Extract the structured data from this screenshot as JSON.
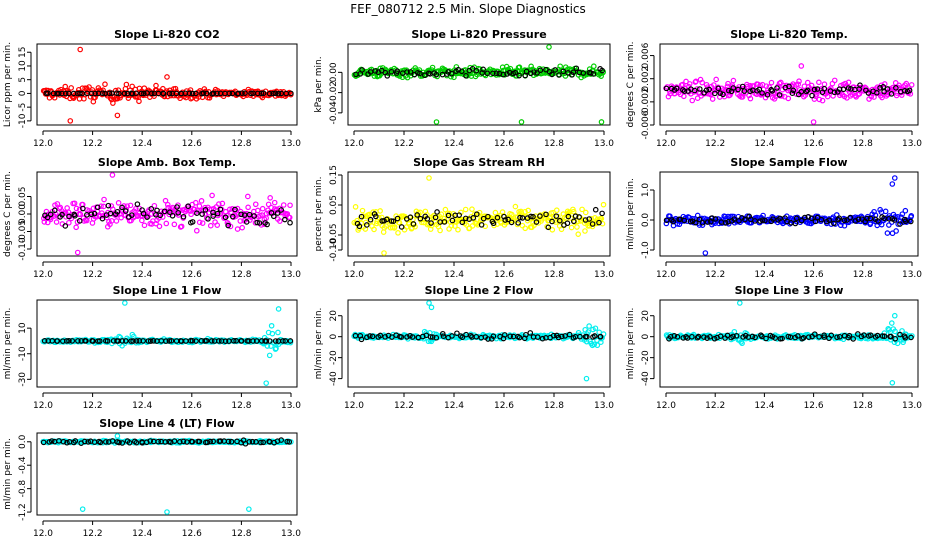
{
  "page_title": "FEF_080712  2.5 Min. Slope Diagnostics",
  "chart_data": [
    {
      "type": "scatter",
      "title": "Slope Li-820 CO2",
      "ylabel": "Licor ppm per min.",
      "color": "#ff0000",
      "xlim": [
        12.0,
        13.0
      ],
      "ylim": [
        -11.5,
        18
      ],
      "x_ticks": [
        "12.0",
        "12.2",
        "12.4",
        "12.6",
        "12.8",
        "13.0"
      ],
      "y_ticks": [
        {
          "v": -10,
          "label": "-10"
        },
        {
          "v": -5,
          "label": "-5"
        },
        {
          "v": 0,
          "label": "0"
        },
        {
          "v": 5,
          "label": "5"
        },
        {
          "v": 10,
          "label": "10"
        },
        {
          "v": 15,
          "label": "15"
        }
      ],
      "spread": 2.2,
      "burst": {
        "x": 12.3,
        "w": 0.4,
        "amp": 3
      },
      "spikes": [
        [
          12.15,
          16
        ],
        [
          12.11,
          -10
        ],
        [
          12.3,
          -8
        ],
        [
          12.5,
          6
        ]
      ],
      "black_spread": 0.2
    },
    {
      "type": "scatter",
      "title": "Slope Li-820 Pressure",
      "ylabel": "kPa per min.",
      "color": "#00cc00",
      "xlim": [
        12.0,
        13.0
      ],
      "ylim": [
        -0.052,
        0.028
      ],
      "x_ticks": [
        "12.0",
        "12.2",
        "12.4",
        "12.6",
        "12.8",
        "13.0"
      ],
      "y_ticks": [
        {
          "v": -0.04,
          "label": "-0.04"
        },
        {
          "v": -0.02,
          "label": "-0.02"
        },
        {
          "v": 0.0,
          "label": "0.00"
        }
      ],
      "spread": 0.008,
      "spikes": [
        [
          12.33,
          -0.05
        ],
        [
          12.67,
          -0.049
        ],
        [
          12.99,
          -0.049
        ],
        [
          12.78,
          0.025
        ]
      ],
      "black_spread": 0.006
    },
    {
      "type": "scatter",
      "title": "Slope Li-820 Temp.",
      "ylabel": "degrees C per min.",
      "color": "#ff00ff",
      "xlim": [
        12.0,
        13.0
      ],
      "ylim": [
        -0.006,
        0.008
      ],
      "x_ticks": [
        "12.0",
        "12.2",
        "12.4",
        "12.6",
        "12.8",
        "13.0"
      ],
      "y_ticks": [
        {
          "v": -0.006,
          "label": "-0.006"
        },
        {
          "v": -0.002,
          "label": "-0.002"
        },
        {
          "v": 0.002,
          "label": "0.002"
        },
        {
          "v": 0.006,
          "label": "0.006"
        }
      ],
      "spread": 0.0025,
      "spikes": [
        [
          12.6,
          -0.0055
        ],
        [
          12.55,
          0.0042
        ]
      ],
      "black_spread": 0.0015
    },
    {
      "type": "scatter",
      "title": "Slope Amb. Box Temp.",
      "ylabel": "degrees C per min.",
      "color": "#ff00ff",
      "xlim": [
        12.0,
        13.0
      ],
      "ylim": [
        -0.12,
        0.12
      ],
      "x_ticks": [
        "12.0",
        "12.2",
        "12.4",
        "12.6",
        "12.8",
        "13.0"
      ],
      "y_ticks": [
        {
          "v": -0.1,
          "label": "-0.10"
        },
        {
          "v": -0.05,
          "label": "-0.05"
        },
        {
          "v": 0.0,
          "label": "0.00"
        },
        {
          "v": 0.05,
          "label": "0.05"
        }
      ],
      "spread": 0.06,
      "spikes": [
        [
          12.28,
          0.115
        ],
        [
          12.14,
          -0.11
        ]
      ],
      "black_spread": 0.045
    },
    {
      "type": "scatter",
      "title": "Slope Gas Stream RH",
      "ylabel": "percent per min.",
      "color": "#ffff00",
      "xlim": [
        12.0,
        13.0
      ],
      "ylim": [
        -0.12,
        0.16
      ],
      "x_ticks": [
        "12.0",
        "12.2",
        "12.4",
        "12.6",
        "12.8",
        "13.0"
      ],
      "y_ticks": [
        {
          "v": -0.1,
          "label": "-0.10"
        },
        {
          "v": -0.05,
          "label": "-0.05"
        },
        {
          "v": 0.05,
          "label": "0.05"
        },
        {
          "v": 0.15,
          "label": "0.15"
        }
      ],
      "spread": 0.06,
      "spikes": [
        [
          12.3,
          0.14
        ],
        [
          12.12,
          -0.11
        ]
      ],
      "black_spread": 0.04
    },
    {
      "type": "scatter",
      "title": "Slope Sample Flow",
      "ylabel": "ml/min per min.",
      "color": "#0000ff",
      "xlim": [
        12.0,
        13.0
      ],
      "ylim": [
        -1.2,
        1.6
      ],
      "x_ticks": [
        "12.0",
        "12.2",
        "12.4",
        "12.6",
        "12.8",
        "13.0"
      ],
      "y_ticks": [
        {
          "v": -1.0,
          "label": "-1.0"
        },
        {
          "v": 0.0,
          "label": "0.0"
        },
        {
          "v": 1.0,
          "label": "1.0"
        }
      ],
      "spread": 0.25,
      "burst": {
        "x": 12.9,
        "w": 0.12,
        "amp": 0.5
      },
      "spikes": [
        [
          12.16,
          -1.15
        ],
        [
          12.93,
          1.4
        ],
        [
          12.92,
          1.2
        ]
      ],
      "black_spread": 0.2
    },
    {
      "type": "scatter",
      "title": "Slope Line 1 Flow",
      "ylabel": "ml/min per min.",
      "color": "#00eeee",
      "xlim": [
        12.0,
        13.0
      ],
      "ylim": [
        -36,
        32
      ],
      "x_ticks": [
        "12.0",
        "12.2",
        "12.4",
        "12.6",
        "12.8",
        "13.0"
      ],
      "y_ticks": [
        {
          "v": -30,
          "label": "-30"
        },
        {
          "v": -10,
          "label": "-10"
        },
        {
          "v": 10,
          "label": "10"
        }
      ],
      "spread": 2,
      "burst": {
        "x": 12.92,
        "w": 0.05,
        "amp": 18
      },
      "burst2": {
        "x": 12.33,
        "w": 0.06,
        "amp": 8
      },
      "spikes": [
        [
          12.33,
          30
        ],
        [
          12.9,
          -33
        ],
        [
          12.95,
          25
        ]
      ],
      "black_spread": 0.3
    },
    {
      "type": "scatter",
      "title": "Slope Line 2 Flow",
      "ylabel": "ml/min per min.",
      "color": "#00eeee",
      "xlim": [
        12.0,
        13.0
      ],
      "ylim": [
        -48,
        35
      ],
      "x_ticks": [
        "12.0",
        "12.2",
        "12.4",
        "12.6",
        "12.8",
        "13.0"
      ],
      "y_ticks": [
        {
          "v": -40,
          "label": "-40"
        },
        {
          "v": -20,
          "label": "-20"
        },
        {
          "v": 0,
          "label": "0"
        },
        {
          "v": 20,
          "label": "20"
        }
      ],
      "spread": 3,
      "burst": {
        "x": 12.95,
        "w": 0.06,
        "amp": 20
      },
      "burst2": {
        "x": 12.3,
        "w": 0.05,
        "amp": 12
      },
      "spikes": [
        [
          12.3,
          33
        ],
        [
          12.93,
          -40
        ],
        [
          12.31,
          28
        ]
      ],
      "black_spread": 4
    },
    {
      "type": "scatter",
      "title": "Slope Line 3 Flow",
      "ylabel": "ml/min per min.",
      "color": "#00eeee",
      "xlim": [
        12.0,
        13.0
      ],
      "ylim": [
        -48,
        35
      ],
      "x_ticks": [
        "12.0",
        "12.2",
        "12.4",
        "12.6",
        "12.8",
        "13.0"
      ],
      "y_ticks": [
        {
          "v": -40,
          "label": "-40"
        },
        {
          "v": -20,
          "label": "-20"
        },
        {
          "v": 0,
          "label": "0"
        },
        {
          "v": 20,
          "label": "20"
        }
      ],
      "spread": 3,
      "burst": {
        "x": 12.93,
        "w": 0.06,
        "amp": 20
      },
      "burst2": {
        "x": 12.3,
        "w": 0.05,
        "amp": 12
      },
      "spikes": [
        [
          12.3,
          33
        ],
        [
          12.92,
          -44
        ],
        [
          12.93,
          20
        ]
      ],
      "black_spread": 4
    },
    {
      "type": "scatter",
      "title": "Slope Line 4 (LT) Flow",
      "ylabel": "ml/min per min.",
      "color": "#00eeee",
      "xlim": [
        12.0,
        13.0
      ],
      "ylim": [
        -1.25,
        0.15
      ],
      "x_ticks": [
        "12.0",
        "12.2",
        "12.4",
        "12.6",
        "12.8",
        "13.0"
      ],
      "y_ticks": [
        {
          "v": -1.2,
          "label": "-1.2"
        },
        {
          "v": -0.8,
          "label": "-0.8"
        },
        {
          "v": -0.4,
          "label": "-0.4"
        },
        {
          "v": 0.0,
          "label": "0.0"
        }
      ],
      "spread": 0.03,
      "spikes": [
        [
          12.16,
          -1.15
        ],
        [
          12.5,
          -1.2
        ],
        [
          12.83,
          -1.15
        ],
        [
          12.3,
          0.1
        ]
      ],
      "black_spread": 0.04
    }
  ]
}
